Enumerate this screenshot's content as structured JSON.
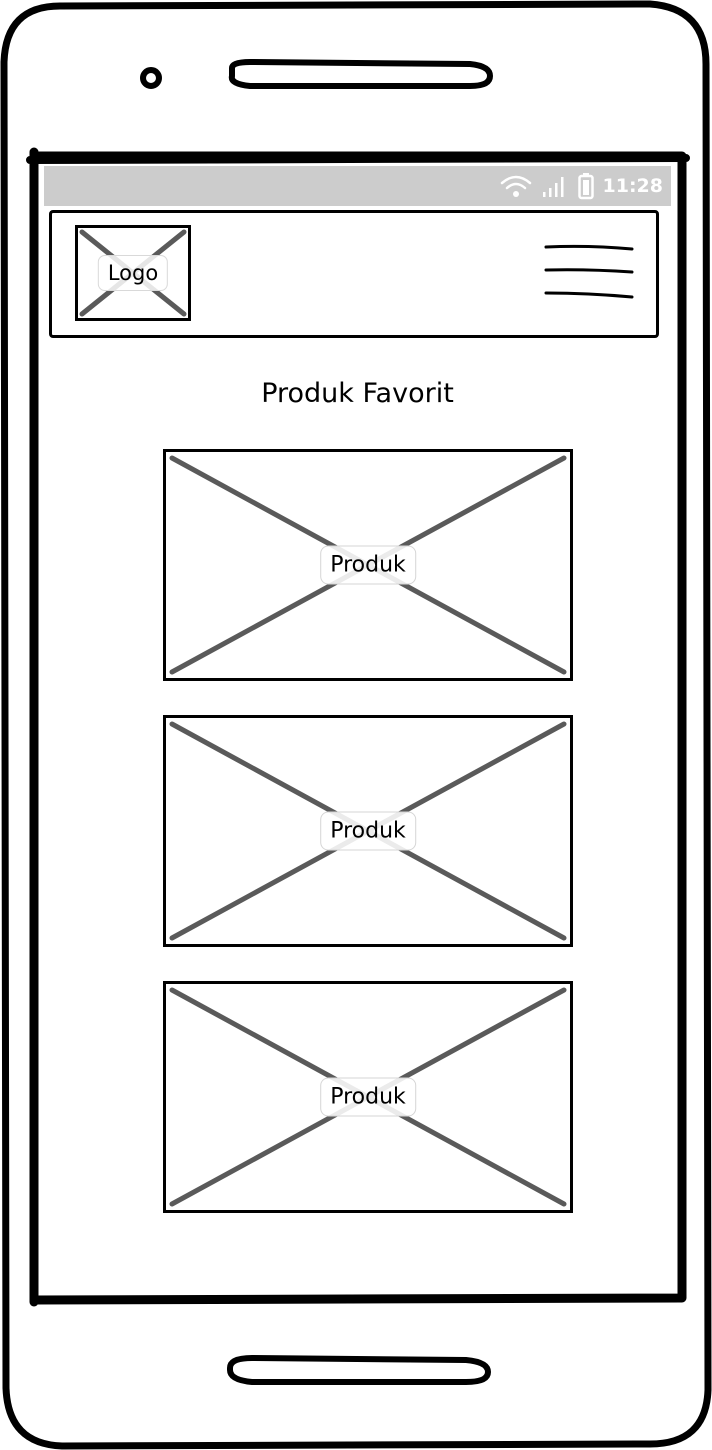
{
  "status_bar": {
    "time": "11:28",
    "icons": [
      "wifi-icon",
      "signal-icon",
      "battery-icon"
    ]
  },
  "header": {
    "logo_label": "Logo",
    "menu_icon": "hamburger-menu-icon"
  },
  "main": {
    "title": "Produk Favorit",
    "products": [
      {
        "label": "Produk"
      },
      {
        "label": "Produk"
      },
      {
        "label": "Produk"
      }
    ]
  },
  "colors": {
    "status_bar_bg": "#cccccc",
    "placeholder_cross": "#5a5a5a",
    "stroke": "#000000"
  }
}
